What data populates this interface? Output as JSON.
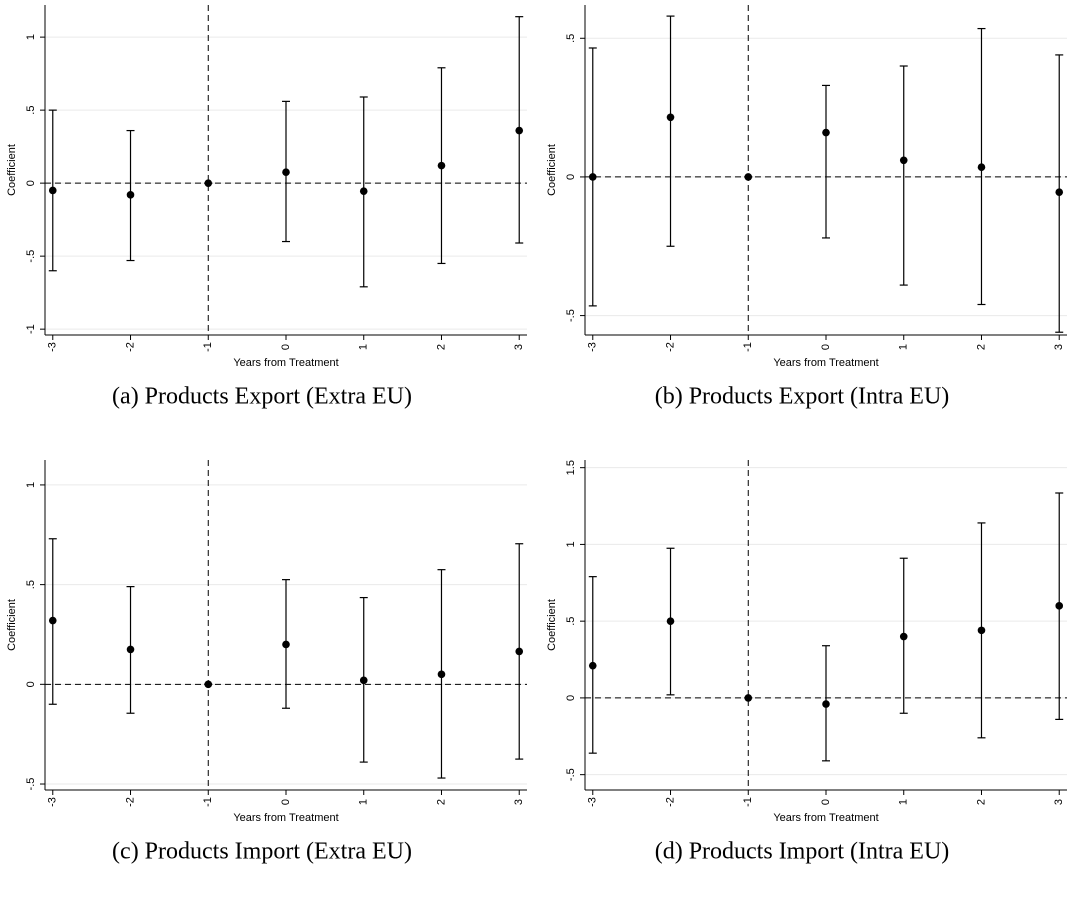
{
  "chart_data": [
    {
      "type": "errorbar",
      "title": "(a) Products Export (Extra EU)",
      "x_label": "Years from Treatment",
      "y_label": "Coefficient",
      "x": [
        -3,
        -2,
        -1,
        0,
        1,
        2,
        3
      ],
      "values": [
        -0.05,
        -0.08,
        0,
        0.075,
        -0.055,
        0.12,
        0.36
      ],
      "lower": [
        -0.6,
        -0.53,
        0,
        -0.4,
        -0.71,
        -0.55,
        -0.41
      ],
      "upper": [
        0.5,
        0.36,
        0,
        0.56,
        0.59,
        0.79,
        1.14
      ],
      "xlim": [
        -3.1,
        3.1
      ],
      "xticks": [
        -3,
        -2,
        -1,
        0,
        1,
        2,
        3
      ],
      "ylim": [
        -1.04,
        1.22
      ],
      "yticks": [
        {
          "value": -1,
          "label": "-1"
        },
        {
          "value": -0.5,
          "label": "-.5"
        },
        0,
        {
          "value": 0.5,
          "label": ".5"
        },
        1
      ],
      "grid": true,
      "color": "#000000",
      "xline": -1,
      "yline": 0
    },
    {
      "type": "errorbar",
      "title": "(b) Products Export (Intra EU)",
      "x_label": "Years from Treatment",
      "y_label": "Coefficient",
      "x": [
        -3,
        -2,
        -1,
        0,
        1,
        2,
        3
      ],
      "values": [
        0,
        0.215,
        0,
        0.16,
        0.06,
        0.035,
        -0.055
      ],
      "lower": [
        -0.465,
        -0.25,
        0,
        -0.22,
        -0.39,
        -0.46,
        -0.56
      ],
      "upper": [
        0.465,
        0.58,
        0,
        0.33,
        0.4,
        0.535,
        0.44
      ],
      "xlim": [
        -3.1,
        3.1
      ],
      "xticks": [
        -3,
        -2,
        -1,
        0,
        1,
        2,
        3
      ],
      "ylim": [
        -0.57,
        0.62
      ],
      "yticks": [
        {
          "value": -0.5,
          "label": "-.5"
        },
        0,
        {
          "value": 0.5,
          "label": ".5"
        }
      ],
      "grid": true,
      "color": "#000000",
      "xline": -1,
      "yline": 0
    },
    {
      "type": "errorbar",
      "title": "(c) Products Import (Extra EU)",
      "x_label": "Years from Treatment",
      "y_label": "Coefficient",
      "x": [
        -3,
        -2,
        -1,
        0,
        1,
        2,
        3
      ],
      "values": [
        0.32,
        0.175,
        0,
        0.2,
        0.02,
        0.05,
        0.165
      ],
      "lower": [
        -0.1,
        -0.145,
        0,
        -0.12,
        -0.39,
        -0.47,
        -0.375
      ],
      "upper": [
        0.73,
        0.49,
        0,
        0.525,
        0.435,
        0.575,
        0.705
      ],
      "xlim": [
        -3.1,
        3.1
      ],
      "xticks": [
        -3,
        -2,
        -1,
        0,
        1,
        2,
        3
      ],
      "ylim": [
        -0.53,
        1.125
      ],
      "yticks": [
        {
          "value": -0.5,
          "label": "-.5"
        },
        0,
        {
          "value": 0.5,
          "label": ".5"
        },
        1
      ],
      "grid": true,
      "color": "#000000",
      "xline": -1,
      "yline": 0
    },
    {
      "type": "errorbar",
      "title": "(d) Products Import (Intra EU)",
      "x_label": "Years from Treatment",
      "y_label": "Coefficient",
      "x": [
        -3,
        -2,
        -1,
        0,
        1,
        2,
        3
      ],
      "values": [
        0.21,
        0.5,
        0,
        -0.04,
        0.4,
        0.44,
        0.6
      ],
      "lower": [
        -0.36,
        0.02,
        0,
        -0.41,
        -0.1,
        -0.26,
        -0.14
      ],
      "upper": [
        0.79,
        0.975,
        0,
        0.34,
        0.91,
        1.14,
        1.335
      ],
      "xlim": [
        -3.1,
        3.1
      ],
      "xticks": [
        -3,
        -2,
        -1,
        0,
        1,
        2,
        3
      ],
      "ylim": [
        -0.6,
        1.55
      ],
      "yticks": [
        {
          "value": -0.5,
          "label": "-.5"
        },
        0,
        {
          "value": 0.5,
          "label": ".5"
        },
        1,
        {
          "value": 1.5,
          "label": "1.5"
        }
      ],
      "grid": true,
      "color": "#000000",
      "xline": -1,
      "yline": 0
    }
  ]
}
